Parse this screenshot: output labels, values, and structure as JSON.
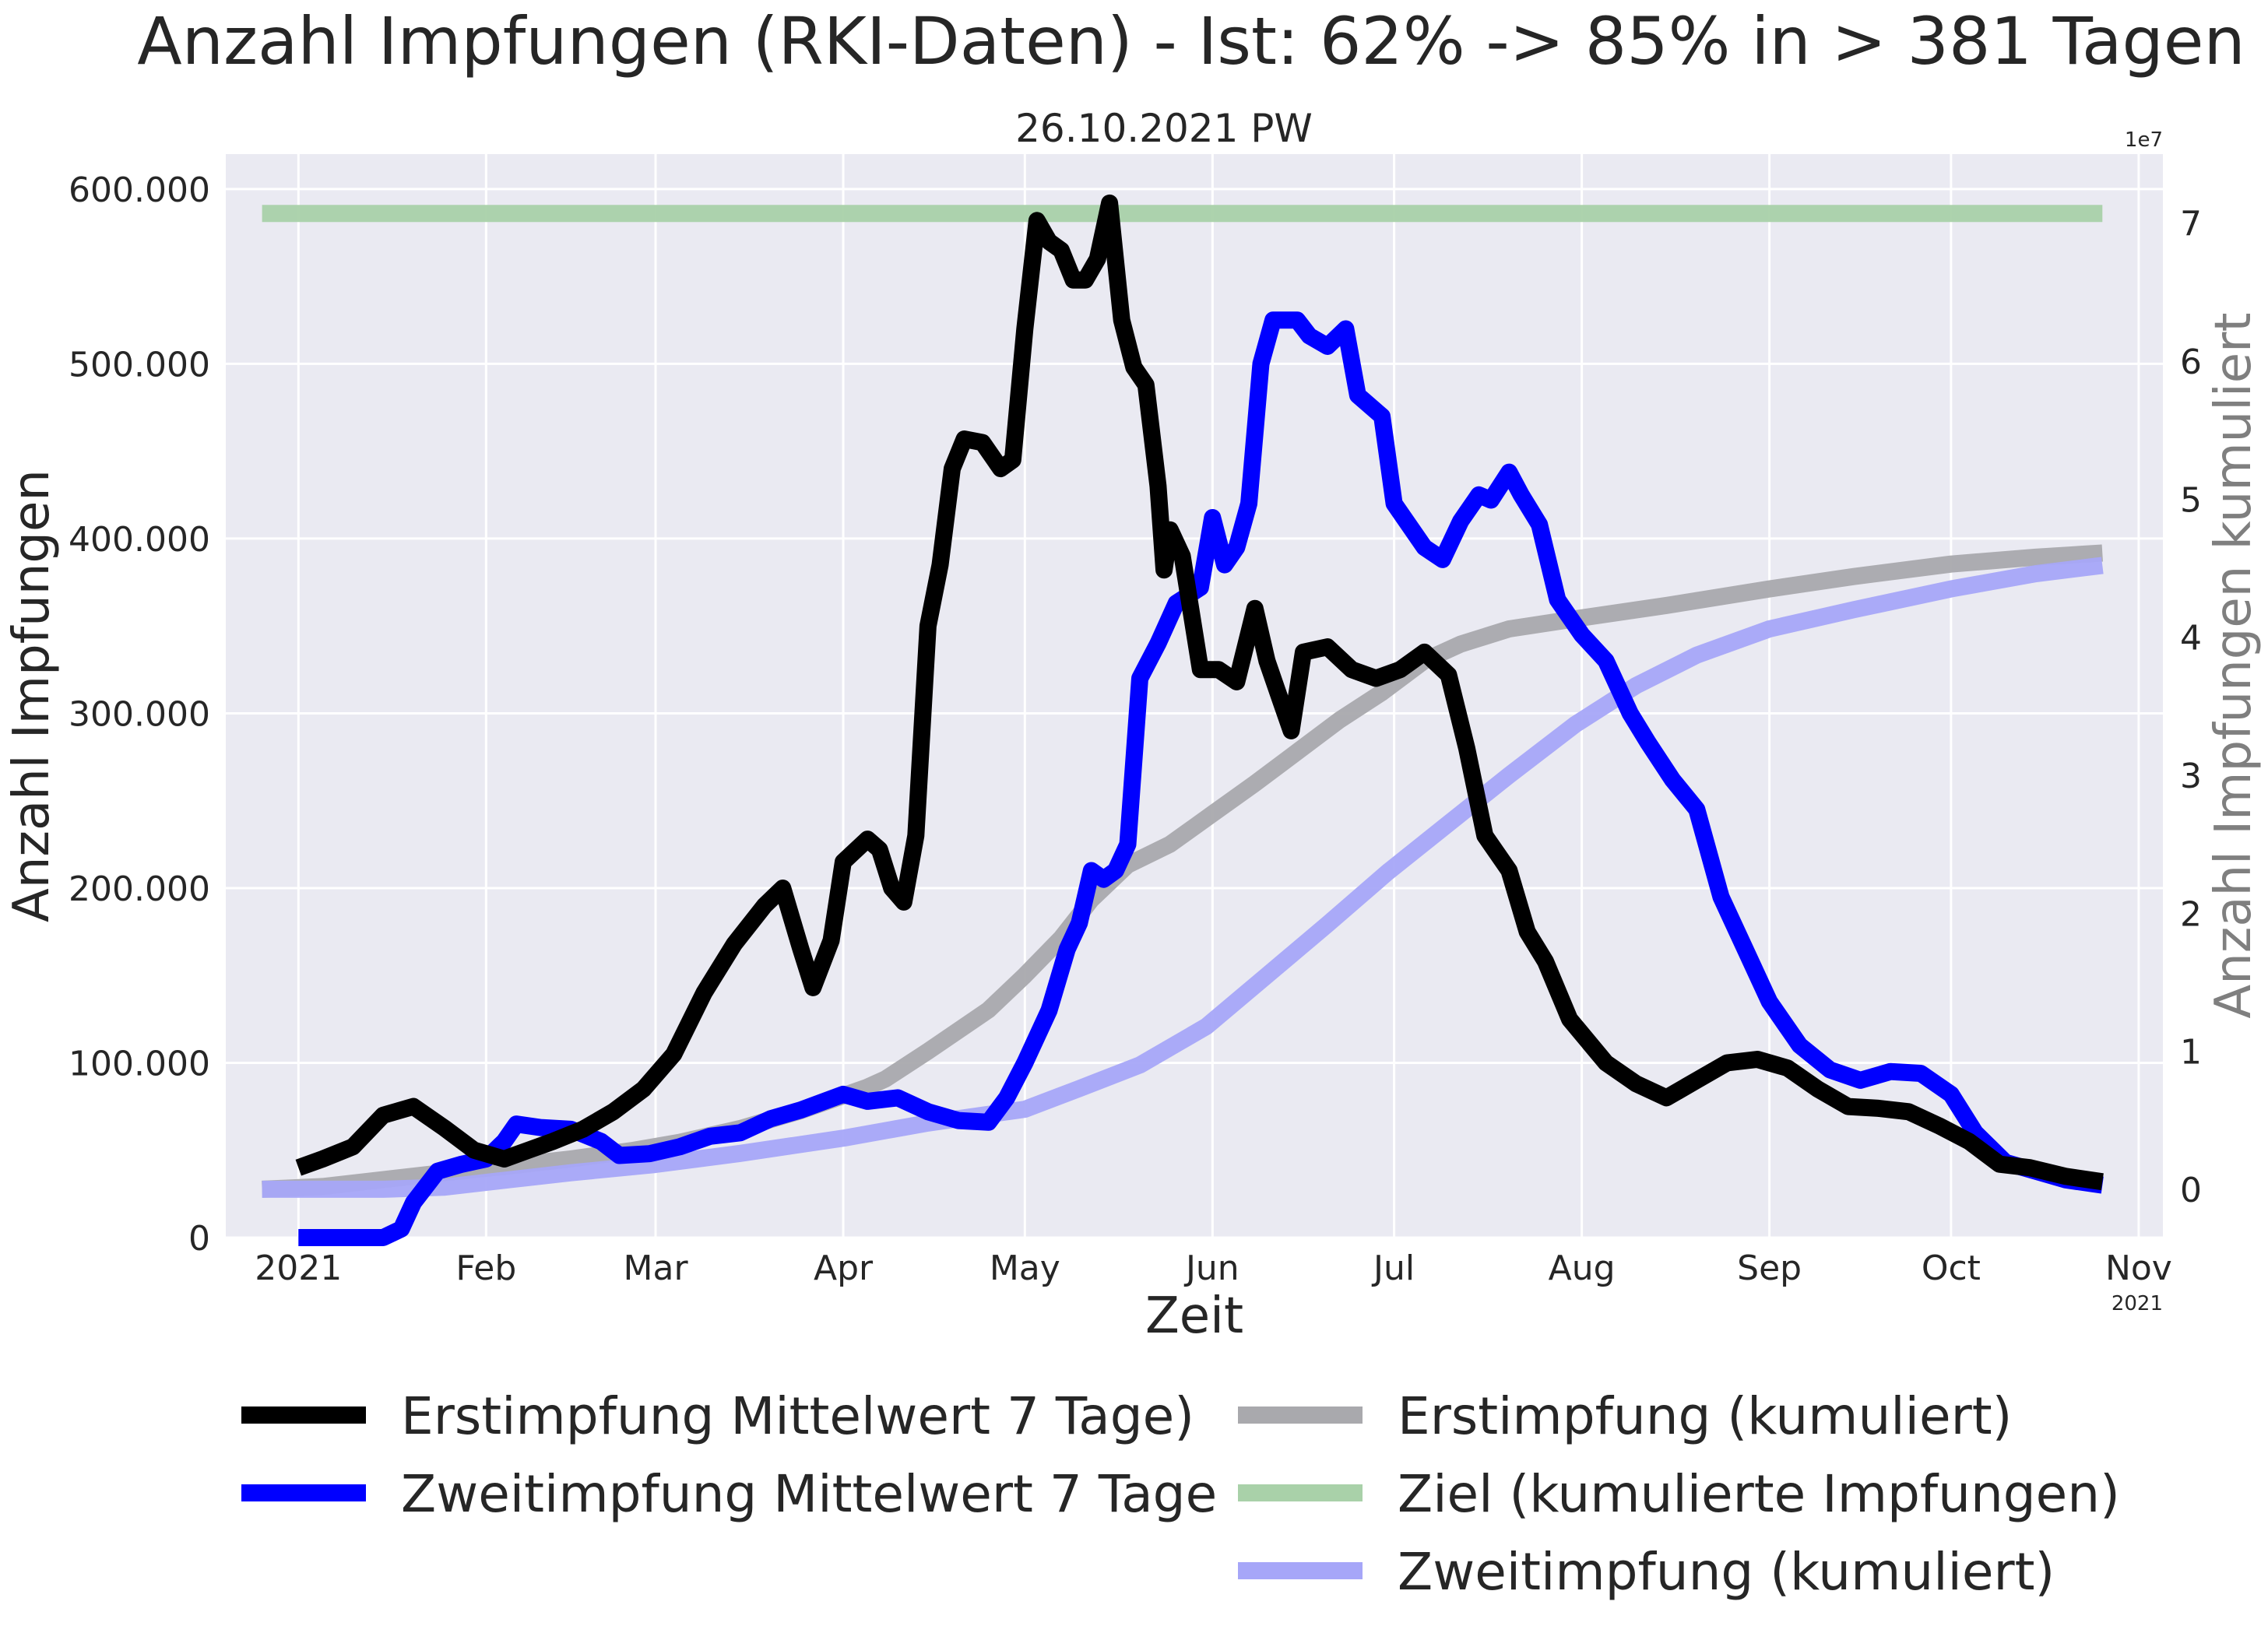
{
  "chart_data": {
    "type": "line",
    "title": "Anzahl Impfungen (RKI-Daten) - Ist: 62% -> 85% in > 381 Tagen",
    "subtitle": "26.10.2021 PW",
    "xlabel": "Zeit",
    "ylabel": "Anzahl Impfungen",
    "ylabel_right": "Anzahl Impfungen kumuliert",
    "x_range": [
      "2020-12-20",
      "2021-11-05"
    ],
    "ylim": [
      0,
      620000
    ],
    "ylim_right": [
      -3500000,
      75000000
    ],
    "right_axis_multiplier": "1e7",
    "x_axis_offset_label": "2021",
    "grid": true,
    "legend_position": "below-center",
    "x_ticks": [
      {
        "date": "2021-01-01",
        "label": "2021"
      },
      {
        "date": "2021-02-01",
        "label": "Feb"
      },
      {
        "date": "2021-03-01",
        "label": "Mar"
      },
      {
        "date": "2021-04-01",
        "label": "Apr"
      },
      {
        "date": "2021-05-01",
        "label": "May"
      },
      {
        "date": "2021-06-01",
        "label": "Jun"
      },
      {
        "date": "2021-07-01",
        "label": "Jul"
      },
      {
        "date": "2021-08-01",
        "label": "Aug"
      },
      {
        "date": "2021-09-01",
        "label": "Sep"
      },
      {
        "date": "2021-10-01",
        "label": "Oct"
      },
      {
        "date": "2021-11-01",
        "label": "Nov"
      }
    ],
    "y_ticks": [
      {
        "value": 0,
        "label": "0"
      },
      {
        "value": 100000,
        "label": "100.000"
      },
      {
        "value": 200000,
        "label": "200.000"
      },
      {
        "value": 300000,
        "label": "300.000"
      },
      {
        "value": 400000,
        "label": "400.000"
      },
      {
        "value": 500000,
        "label": "500.000"
      },
      {
        "value": 600000,
        "label": "600.000"
      }
    ],
    "y_ticks_right": [
      {
        "value": 0,
        "label": "0"
      },
      {
        "value": 10000000,
        "label": "1"
      },
      {
        "value": 20000000,
        "label": "2"
      },
      {
        "value": 30000000,
        "label": "3"
      },
      {
        "value": 40000000,
        "label": "4"
      },
      {
        "value": 50000000,
        "label": "5"
      },
      {
        "value": 60000000,
        "label": "6"
      },
      {
        "value": 70000000,
        "label": "7"
      }
    ],
    "legend": [
      {
        "label": "Erstimpfung Mittelwert 7 Tage)",
        "color": "#000000"
      },
      {
        "label": "Zweitimpfung Mittelwert 7 Tage",
        "color": "#0000ff"
      },
      {
        "label": "Erstimpfung (kumuliert)",
        "color": "#a9a9ad"
      },
      {
        "label": "Ziel (kumulierte Impfungen)",
        "color": "#a9d1a9"
      },
      {
        "label": "Zweitimpfung (kumuliert)",
        "color": "#a6a6f8"
      }
    ],
    "series": [
      {
        "name": "Ziel (kumulierte Impfungen)",
        "axis": "right",
        "color": "#a9d1a9",
        "opacity": 0.95,
        "points": [
          [
            "2020-12-26",
            70700000
          ],
          [
            "2021-10-26",
            70700000
          ]
        ]
      },
      {
        "name": "Erstimpfung (kumuliert)",
        "axis": "right",
        "color": "#a9a9ad",
        "opacity": 0.95,
        "points": [
          [
            "2020-12-26",
            0
          ],
          [
            "2021-01-05",
            200000
          ],
          [
            "2021-01-15",
            700000
          ],
          [
            "2021-01-25",
            1200000
          ],
          [
            "2021-02-05",
            1700000
          ],
          [
            "2021-02-15",
            2200000
          ],
          [
            "2021-02-25",
            2800000
          ],
          [
            "2021-03-05",
            3400000
          ],
          [
            "2021-03-15",
            4400000
          ],
          [
            "2021-03-25",
            5700000
          ],
          [
            "2021-04-05",
            7400000
          ],
          [
            "2021-04-08",
            8000000
          ],
          [
            "2021-04-15",
            10000000
          ],
          [
            "2021-04-25",
            13000000
          ],
          [
            "2021-05-01",
            15500000
          ],
          [
            "2021-05-07",
            18200000
          ],
          [
            "2021-05-12",
            21000000
          ],
          [
            "2021-05-18",
            23500000
          ],
          [
            "2021-05-25",
            25000000
          ],
          [
            "2021-06-01",
            27200000
          ],
          [
            "2021-06-08",
            29400000
          ],
          [
            "2021-06-15",
            31700000
          ],
          [
            "2021-06-22",
            34000000
          ],
          [
            "2021-06-29",
            36000000
          ],
          [
            "2021-07-06",
            38300000
          ],
          [
            "2021-07-12",
            39500000
          ],
          [
            "2021-07-20",
            40600000
          ],
          [
            "2021-08-01",
            41400000
          ],
          [
            "2021-08-15",
            42300000
          ],
          [
            "2021-09-01",
            43500000
          ],
          [
            "2021-09-15",
            44400000
          ],
          [
            "2021-10-01",
            45300000
          ],
          [
            "2021-10-15",
            45800000
          ],
          [
            "2021-10-26",
            46100000
          ]
        ]
      },
      {
        "name": "Zweitimpfung (kumuliert)",
        "axis": "right",
        "color": "#a6a6f8",
        "opacity": 0.95,
        "points": [
          [
            "2020-12-26",
            0
          ],
          [
            "2021-01-15",
            0
          ],
          [
            "2021-01-25",
            150000
          ],
          [
            "2021-02-05",
            700000
          ],
          [
            "2021-02-15",
            1200000
          ],
          [
            "2021-03-01",
            1800000
          ],
          [
            "2021-03-15",
            2600000
          ],
          [
            "2021-04-01",
            3700000
          ],
          [
            "2021-04-15",
            4800000
          ],
          [
            "2021-05-01",
            5800000
          ],
          [
            "2021-05-10",
            7300000
          ],
          [
            "2021-05-20",
            9000000
          ],
          [
            "2021-05-31",
            11800000
          ],
          [
            "2021-06-10",
            15500000
          ],
          [
            "2021-06-20",
            19200000
          ],
          [
            "2021-06-30",
            23000000
          ],
          [
            "2021-07-10",
            26500000
          ],
          [
            "2021-07-20",
            30000000
          ],
          [
            "2021-07-31",
            33700000
          ],
          [
            "2021-08-10",
            36500000
          ],
          [
            "2021-08-20",
            38700000
          ],
          [
            "2021-09-01",
            40600000
          ],
          [
            "2021-09-15",
            42000000
          ],
          [
            "2021-10-01",
            43500000
          ],
          [
            "2021-10-15",
            44600000
          ],
          [
            "2021-10-26",
            45200000
          ]
        ]
      },
      {
        "name": "Zweitimpfung Mittelwert 7 Tage",
        "axis": "left",
        "color": "#0000ff",
        "opacity": 1,
        "points": [
          [
            "2021-01-01",
            0
          ],
          [
            "2021-01-15",
            0
          ],
          [
            "2021-01-18",
            5000
          ],
          [
            "2021-01-20",
            20000
          ],
          [
            "2021-01-24",
            38000
          ],
          [
            "2021-01-28",
            42000
          ],
          [
            "2021-02-01",
            45000
          ],
          [
            "2021-02-04",
            55000
          ],
          [
            "2021-02-06",
            65000
          ],
          [
            "2021-02-10",
            63000
          ],
          [
            "2021-02-15",
            62000
          ],
          [
            "2021-02-20",
            55000
          ],
          [
            "2021-02-23",
            47000
          ],
          [
            "2021-02-28",
            48000
          ],
          [
            "2021-03-05",
            52000
          ],
          [
            "2021-03-10",
            58000
          ],
          [
            "2021-03-15",
            60000
          ],
          [
            "2021-03-20",
            68000
          ],
          [
            "2021-03-25",
            73000
          ],
          [
            "2021-04-01",
            82000
          ],
          [
            "2021-04-05",
            78000
          ],
          [
            "2021-04-10",
            80000
          ],
          [
            "2021-04-15",
            72000
          ],
          [
            "2021-04-20",
            67000
          ],
          [
            "2021-04-25",
            66000
          ],
          [
            "2021-04-28",
            80000
          ],
          [
            "2021-05-01",
            100000
          ],
          [
            "2021-05-05",
            130000
          ],
          [
            "2021-05-08",
            165000
          ],
          [
            "2021-05-10",
            180000
          ],
          [
            "2021-05-12",
            210000
          ],
          [
            "2021-05-14",
            205000
          ],
          [
            "2021-05-16",
            210000
          ],
          [
            "2021-05-18",
            225000
          ],
          [
            "2021-05-20",
            320000
          ],
          [
            "2021-05-23",
            340000
          ],
          [
            "2021-05-26",
            363000
          ],
          [
            "2021-05-30",
            372000
          ],
          [
            "2021-06-01",
            412000
          ],
          [
            "2021-06-03",
            385000
          ],
          [
            "2021-06-05",
            395000
          ],
          [
            "2021-06-07",
            420000
          ],
          [
            "2021-06-09",
            500000
          ],
          [
            "2021-06-11",
            525000
          ],
          [
            "2021-06-15",
            525000
          ],
          [
            "2021-06-17",
            516000
          ],
          [
            "2021-06-20",
            510000
          ],
          [
            "2021-06-23",
            520000
          ],
          [
            "2021-06-25",
            482000
          ],
          [
            "2021-06-29",
            470000
          ],
          [
            "2021-07-01",
            420000
          ],
          [
            "2021-07-06",
            395000
          ],
          [
            "2021-07-09",
            388000
          ],
          [
            "2021-07-12",
            410000
          ],
          [
            "2021-07-15",
            425000
          ],
          [
            "2021-07-17",
            422000
          ],
          [
            "2021-07-20",
            438000
          ],
          [
            "2021-07-22",
            425000
          ],
          [
            "2021-07-25",
            408000
          ],
          [
            "2021-07-28",
            365000
          ],
          [
            "2021-08-01",
            345000
          ],
          [
            "2021-08-05",
            330000
          ],
          [
            "2021-08-09",
            300000
          ],
          [
            "2021-08-12",
            283000
          ],
          [
            "2021-08-16",
            262000
          ],
          [
            "2021-08-20",
            245000
          ],
          [
            "2021-08-24",
            195000
          ],
          [
            "2021-08-28",
            165000
          ],
          [
            "2021-09-01",
            135000
          ],
          [
            "2021-09-06",
            110000
          ],
          [
            "2021-09-11",
            96000
          ],
          [
            "2021-09-16",
            90000
          ],
          [
            "2021-09-21",
            95000
          ],
          [
            "2021-09-26",
            94000
          ],
          [
            "2021-10-01",
            82000
          ],
          [
            "2021-10-05",
            60000
          ],
          [
            "2021-10-10",
            43000
          ],
          [
            "2021-10-15",
            38000
          ],
          [
            "2021-10-20",
            33000
          ],
          [
            "2021-10-26",
            30000
          ]
        ]
      },
      {
        "name": "Erstimpfung Mittelwert 7 Tage)",
        "axis": "left",
        "color": "#000000",
        "opacity": 1,
        "points": [
          [
            "2021-01-01",
            40000
          ],
          [
            "2021-01-05",
            45000
          ],
          [
            "2021-01-10",
            52000
          ],
          [
            "2021-01-15",
            70000
          ],
          [
            "2021-01-20",
            75000
          ],
          [
            "2021-01-25",
            63000
          ],
          [
            "2021-01-30",
            50000
          ],
          [
            "2021-02-04",
            45000
          ],
          [
            "2021-02-08",
            50000
          ],
          [
            "2021-02-12",
            55000
          ],
          [
            "2021-02-17",
            62000
          ],
          [
            "2021-02-22",
            72000
          ],
          [
            "2021-02-27",
            85000
          ],
          [
            "2021-03-04",
            105000
          ],
          [
            "2021-03-09",
            140000
          ],
          [
            "2021-03-14",
            168000
          ],
          [
            "2021-03-19",
            190000
          ],
          [
            "2021-03-22",
            200000
          ],
          [
            "2021-03-25",
            165000
          ],
          [
            "2021-03-27",
            143000
          ],
          [
            "2021-03-30",
            170000
          ],
          [
            "2021-04-01",
            215000
          ],
          [
            "2021-04-05",
            228000
          ],
          [
            "2021-04-07",
            222000
          ],
          [
            "2021-04-09",
            200000
          ],
          [
            "2021-04-11",
            192000
          ],
          [
            "2021-04-13",
            230000
          ],
          [
            "2021-04-15",
            350000
          ],
          [
            "2021-04-17",
            385000
          ],
          [
            "2021-04-19",
            440000
          ],
          [
            "2021-04-21",
            457000
          ],
          [
            "2021-04-24",
            455000
          ],
          [
            "2021-04-27",
            440000
          ],
          [
            "2021-04-29",
            445000
          ],
          [
            "2021-05-01",
            520000
          ],
          [
            "2021-05-03",
            582000
          ],
          [
            "2021-05-05",
            570000
          ],
          [
            "2021-05-07",
            565000
          ],
          [
            "2021-05-09",
            548000
          ],
          [
            "2021-05-11",
            548000
          ],
          [
            "2021-05-13",
            560000
          ],
          [
            "2021-05-15",
            592000
          ],
          [
            "2021-05-17",
            525000
          ],
          [
            "2021-05-19",
            498000
          ],
          [
            "2021-05-21",
            488000
          ],
          [
            "2021-05-23",
            430000
          ],
          [
            "2021-05-24",
            382000
          ],
          [
            "2021-05-25",
            405000
          ],
          [
            "2021-05-27",
            390000
          ],
          [
            "2021-05-30",
            325000
          ],
          [
            "2021-06-02",
            325000
          ],
          [
            "2021-06-05",
            318000
          ],
          [
            "2021-06-08",
            360000
          ],
          [
            "2021-06-10",
            330000
          ],
          [
            "2021-06-12",
            310000
          ],
          [
            "2021-06-14",
            290000
          ],
          [
            "2021-06-16",
            335000
          ],
          [
            "2021-06-20",
            338000
          ],
          [
            "2021-06-24",
            325000
          ],
          [
            "2021-06-28",
            320000
          ],
          [
            "2021-07-02",
            325000
          ],
          [
            "2021-07-06",
            335000
          ],
          [
            "2021-07-10",
            322000
          ],
          [
            "2021-07-13",
            280000
          ],
          [
            "2021-07-16",
            230000
          ],
          [
            "2021-07-20",
            210000
          ],
          [
            "2021-07-23",
            175000
          ],
          [
            "2021-07-26",
            158000
          ],
          [
            "2021-07-30",
            125000
          ],
          [
            "2021-08-05",
            100000
          ],
          [
            "2021-08-10",
            88000
          ],
          [
            "2021-08-15",
            80000
          ],
          [
            "2021-08-20",
            90000
          ],
          [
            "2021-08-25",
            100000
          ],
          [
            "2021-08-30",
            102000
          ],
          [
            "2021-09-04",
            97000
          ],
          [
            "2021-09-09",
            85000
          ],
          [
            "2021-09-14",
            75000
          ],
          [
            "2021-09-19",
            74000
          ],
          [
            "2021-09-24",
            72000
          ],
          [
            "2021-09-29",
            64000
          ],
          [
            "2021-10-04",
            55000
          ],
          [
            "2021-10-09",
            42000
          ],
          [
            "2021-10-14",
            40000
          ],
          [
            "2021-10-20",
            35000
          ],
          [
            "2021-10-26",
            32000
          ]
        ]
      }
    ]
  }
}
